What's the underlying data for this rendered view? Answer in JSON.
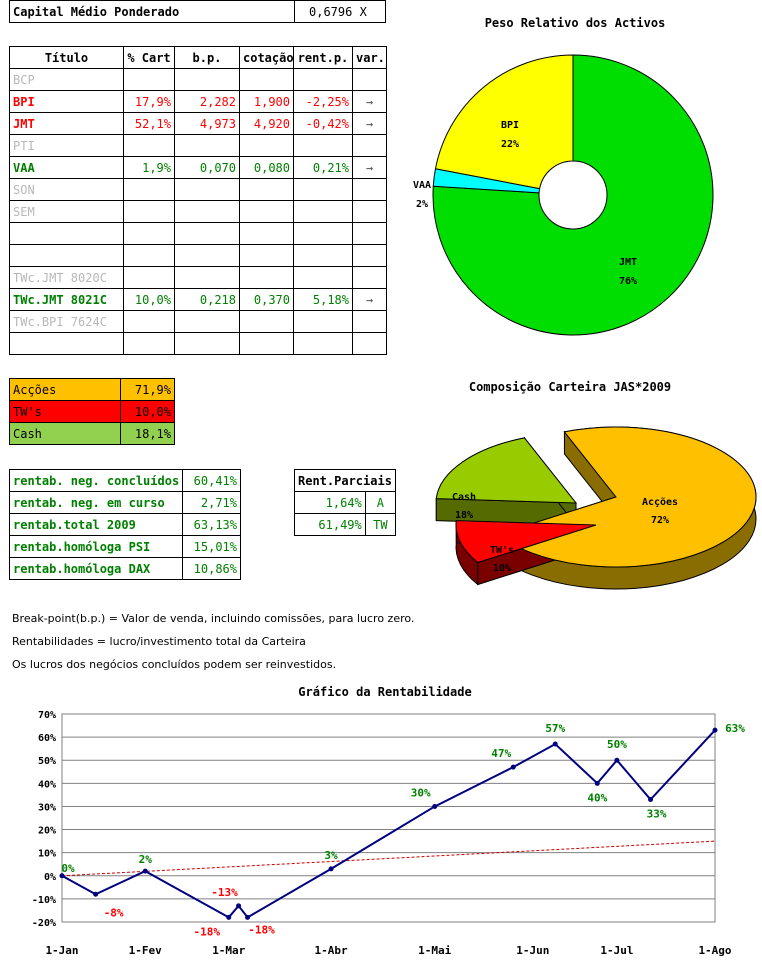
{
  "capital": {
    "label": "Capital Médio Ponderado",
    "value": "0,6796 X"
  },
  "portfolio": {
    "headers": [
      "Título",
      "% Cart",
      "b.p.",
      "cotação",
      "rent.p.",
      "var."
    ],
    "rows": [
      {
        "titulo": "BCP",
        "cart": "",
        "bp": "",
        "cot": "",
        "rent": "",
        "var": "",
        "style": "grey"
      },
      {
        "titulo": "BPI",
        "cart": "17,9%",
        "bp": "2,282",
        "cot": "1,900",
        "rent": "-2,25%",
        "var": "→",
        "style": "red"
      },
      {
        "titulo": "JMT",
        "cart": "52,1%",
        "bp": "4,973",
        "cot": "4,920",
        "rent": "-0,42%",
        "var": "→",
        "style": "red"
      },
      {
        "titulo": "PTI",
        "cart": "",
        "bp": "",
        "cot": "",
        "rent": "",
        "var": "",
        "style": "grey"
      },
      {
        "titulo": "VAA",
        "cart": "1,9%",
        "bp": "0,070",
        "cot": "0,080",
        "rent": "0,21%",
        "var": "→",
        "style": "green"
      },
      {
        "titulo": "SON",
        "cart": "",
        "bp": "",
        "cot": "",
        "rent": "",
        "var": "",
        "style": "grey"
      },
      {
        "titulo": "SEM",
        "cart": "",
        "bp": "",
        "cot": "",
        "rent": "",
        "var": "",
        "style": "grey"
      },
      {
        "titulo": "",
        "cart": "",
        "bp": "",
        "cot": "",
        "rent": "",
        "var": "",
        "style": "grey"
      },
      {
        "titulo": "",
        "cart": "",
        "bp": "",
        "cot": "",
        "rent": "",
        "var": "",
        "style": "grey"
      },
      {
        "titulo": "TWc.JMT 8020C",
        "cart": "",
        "bp": "",
        "cot": "",
        "rent": "",
        "var": "",
        "style": "grey"
      },
      {
        "titulo": "TWc.JMT 8021C",
        "cart": "10,0%",
        "bp": "0,218",
        "cot": "0,370",
        "rent": "5,18%",
        "var": "→",
        "style": "green"
      },
      {
        "titulo": "TWc.BPI 7624C",
        "cart": "",
        "bp": "",
        "cot": "",
        "rent": "",
        "var": "",
        "style": "grey"
      },
      {
        "titulo": "",
        "cart": "",
        "bp": "",
        "cot": "",
        "rent": "",
        "var": "",
        "style": "grey"
      }
    ]
  },
  "allocation": [
    {
      "label": "Acções",
      "value": "71,9%",
      "color": "#ffc000"
    },
    {
      "label": "TW's",
      "value": "10,0%",
      "color": "#ff0000"
    },
    {
      "label": "Cash",
      "value": "18,1%",
      "color": "#92d050"
    }
  ],
  "returns": [
    {
      "label": "rentab. neg. concluídos",
      "value": "60,41%"
    },
    {
      "label": "rentab. neg. em curso",
      "value": "2,71%"
    },
    {
      "label": "rentab.total 2009",
      "value": "63,13%"
    },
    {
      "label": "rentab.homóloga PSI",
      "value": "15,01%"
    },
    {
      "label": "rentab.homóloga DAX",
      "value": "10,86%"
    }
  ],
  "parciais": {
    "header": "Rent.Parciais",
    "rows": [
      {
        "value": "1,64%",
        "code": "A"
      },
      {
        "value": "61,49%",
        "code": "TW"
      }
    ]
  },
  "notes": [
    "Break-point(b.p.) = Valor de venda, incluindo comissões, para lucro zero.",
    "Rentabilidades = lucro/investimento total da Carteira",
    "Os lucros dos negócios concluídos podem ser reinvestidos."
  ],
  "chart_data": [
    {
      "type": "pie",
      "title": "Peso Relativo dos Activos",
      "slices": [
        {
          "label": "JMT",
          "value": 76,
          "color": "#00dd00"
        },
        {
          "label": "VAA",
          "value": 2,
          "color": "#00ffff"
        },
        {
          "label": "BPI",
          "value": 22,
          "color": "#ffff00"
        }
      ]
    },
    {
      "type": "pie",
      "title": "Composição Carteira JAS*2009",
      "slices": [
        {
          "label": "Acções",
          "value": 72,
          "color": "#ffc000"
        },
        {
          "label": "TW's",
          "value": 10,
          "color": "#ff0000"
        },
        {
          "label": "Cash",
          "value": 18,
          "color": "#99cc00"
        }
      ]
    },
    {
      "type": "line",
      "title": "Gráfico da Rentabilidade",
      "ylim": [
        -20,
        70
      ],
      "yticks": [
        "70%",
        "60%",
        "50%",
        "40%",
        "30%",
        "20%",
        "10%",
        "0%",
        "-10%",
        "-20%"
      ],
      "xticks": [
        "1-Jan",
        "1-Fev",
        "1-Mar",
        "1-Abr",
        "1-Mai",
        "1-Jun",
        "1-Jul",
        "1-Ago"
      ],
      "series": [
        {
          "points": [
            {
              "x": 0,
              "y": 0,
              "label": "0%",
              "color": "green"
            },
            {
              "x": 1.2,
              "y": -8,
              "label": "-8%",
              "color": "red"
            },
            {
              "x": 2.97,
              "y": 2,
              "label": "2%",
              "color": "green"
            },
            {
              "x": 5.95,
              "y": -18,
              "label": "-18%",
              "color": "red"
            },
            {
              "x": 6.3,
              "y": -13,
              "label": "-13%",
              "color": "red"
            },
            {
              "x": 6.62,
              "y": -18,
              "label": "-18%",
              "color": "red"
            },
            {
              "x": 9.6,
              "y": 3,
              "label": "3%",
              "color": "green"
            },
            {
              "x": 13.3,
              "y": 30,
              "label": "30%",
              "color": "green"
            },
            {
              "x": 16.1,
              "y": 47,
              "label": "47%",
              "color": "green"
            },
            {
              "x": 17.6,
              "y": 57,
              "label": "57%",
              "color": "green"
            },
            {
              "x": 19.1,
              "y": 40,
              "label": "40%",
              "color": "green"
            },
            {
              "x": 19.8,
              "y": 50,
              "label": "50%",
              "color": "green"
            },
            {
              "x": 21.0,
              "y": 33,
              "label": "33%",
              "color": "green"
            },
            {
              "x": 23.3,
              "y": 63,
              "label": "63%",
              "color": "green"
            }
          ]
        }
      ],
      "trend": {
        "from": 0,
        "to": 15
      }
    }
  ]
}
